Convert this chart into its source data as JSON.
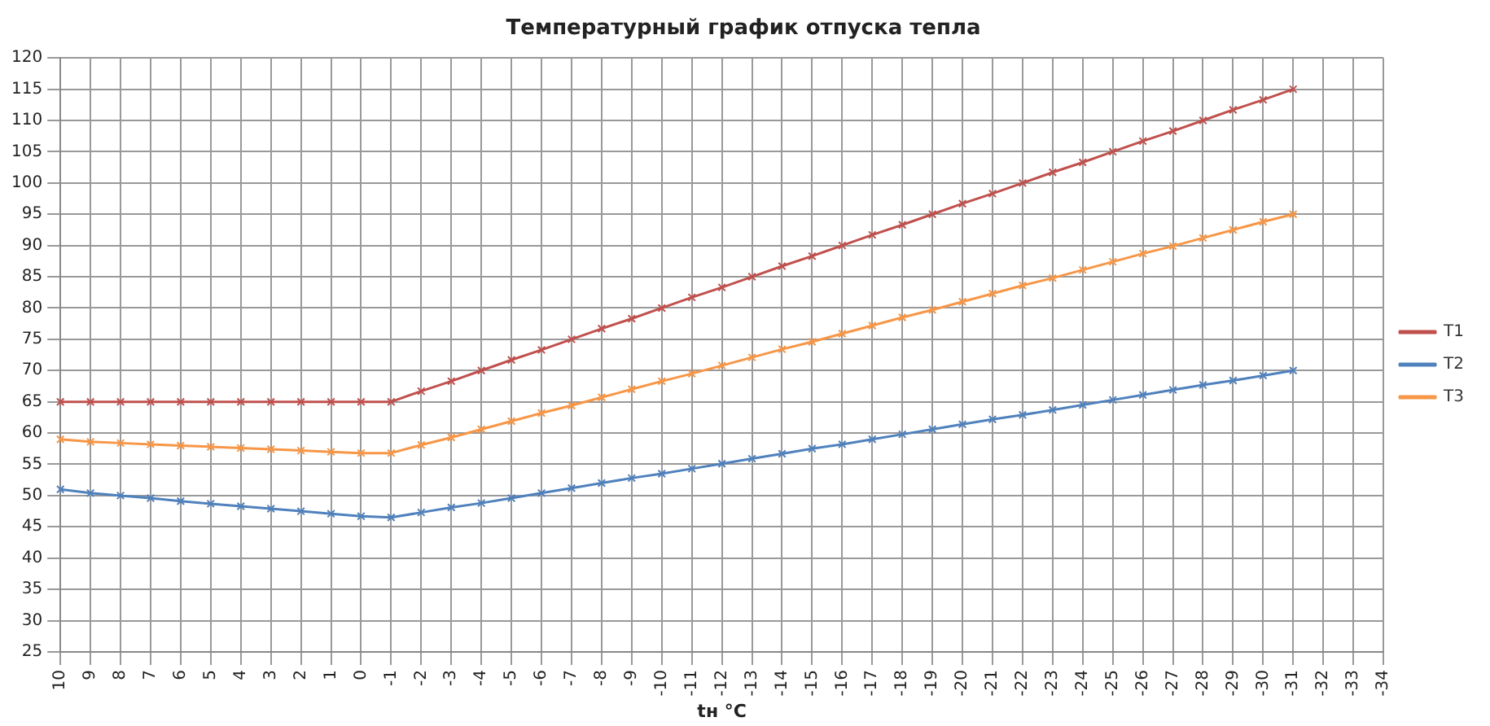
{
  "chart_data": {
    "type": "line",
    "title": "Температурный график отпуска тепла",
    "xlabel": "tн °C",
    "categories": [
      "10",
      "9",
      "8",
      "7",
      "6",
      "5",
      "4",
      "3",
      "2",
      "1",
      "0",
      "-1",
      "-2",
      "-3",
      "-4",
      "-5",
      "-6",
      "-7",
      "-8",
      "-9",
      "-10",
      "-11",
      "-12",
      "-13",
      "-14",
      "-15",
      "-16",
      "-17",
      "-18",
      "-19",
      "-20",
      "-21",
      "-22",
      "-23",
      "-24",
      "-25",
      "-26",
      "-27",
      "-28",
      "-29",
      "-30",
      "-31",
      "-32",
      "-33",
      "-34"
    ],
    "series": [
      {
        "name": "T1",
        "color": "#c0504d",
        "values": [
          65,
          65,
          65,
          65,
          65,
          65,
          65,
          65,
          65,
          65,
          65,
          65,
          66.7,
          68.3,
          70,
          71.7,
          73.3,
          75,
          76.7,
          78.3,
          80,
          81.7,
          83.3,
          85,
          86.7,
          88.3,
          90,
          91.7,
          93.3,
          95,
          96.7,
          98.3,
          100,
          101.7,
          103.3,
          105,
          106.7,
          108.3,
          110,
          111.7,
          113.3,
          115,
          null,
          null,
          null
        ]
      },
      {
        "name": "T2",
        "color": "#4f81bd",
        "values": [
          51,
          50.4,
          50,
          49.6,
          49.1,
          48.7,
          48.3,
          47.9,
          47.5,
          47.1,
          46.7,
          46.5,
          47.3,
          48.1,
          48.8,
          49.6,
          50.4,
          51.2,
          52,
          52.8,
          53.5,
          54.3,
          55.1,
          55.9,
          56.7,
          57.5,
          58.2,
          59,
          59.8,
          60.6,
          61.4,
          62.2,
          62.9,
          63.7,
          64.5,
          65.3,
          66.1,
          66.9,
          67.7,
          68.4,
          69.2,
          70,
          null,
          null,
          null
        ]
      },
      {
        "name": "T3",
        "color": "#f79646",
        "values": [
          59,
          58.6,
          58.4,
          58.2,
          58,
          57.8,
          57.6,
          57.4,
          57.2,
          57,
          56.8,
          56.8,
          58.1,
          59.3,
          60.6,
          61.9,
          63.2,
          64.4,
          65.7,
          67,
          68.3,
          69.5,
          70.8,
          72.1,
          73.4,
          74.6,
          75.9,
          77.2,
          78.5,
          79.7,
          81,
          82.3,
          83.6,
          84.8,
          86.1,
          87.4,
          88.7,
          89.9,
          91.2,
          92.5,
          93.8,
          95,
          null,
          null,
          null
        ]
      }
    ],
    "ylim": [
      25,
      120
    ],
    "yticks": [
      25,
      30,
      35,
      40,
      45,
      50,
      55,
      60,
      65,
      70,
      75,
      80,
      85,
      90,
      95,
      100,
      105,
      110,
      115,
      120
    ],
    "grid": true,
    "legend": "right",
    "marker": "cross",
    "line_style": "solid"
  }
}
